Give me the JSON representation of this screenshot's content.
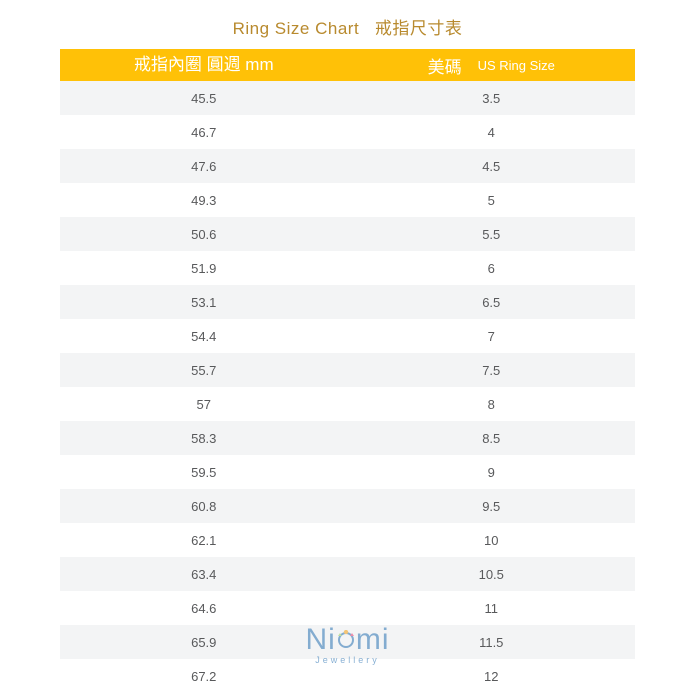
{
  "title": {
    "en": "Ring Size Chart",
    "cn": "戒指尺寸表",
    "color": "#b88a2e"
  },
  "table": {
    "header": {
      "left": "戒指內圈 圓週 mm",
      "right_cn": "美碼",
      "right_en": "US Ring Size",
      "bg_color": "#ffc107",
      "text_color": "#ffffff"
    },
    "row_colors": {
      "odd_bg": "#f3f4f5",
      "even_bg": "#ffffff",
      "text_color": "#58595b"
    },
    "rows": [
      {
        "mm": "45.5",
        "us": "3.5"
      },
      {
        "mm": "46.7",
        "us": "4"
      },
      {
        "mm": "47.6",
        "us": "4.5"
      },
      {
        "mm": "49.3",
        "us": "5"
      },
      {
        "mm": "50.6",
        "us": "5.5"
      },
      {
        "mm": "51.9",
        "us": "6"
      },
      {
        "mm": "53.1",
        "us": "6.5"
      },
      {
        "mm": "54.4",
        "us": "7"
      },
      {
        "mm": "55.7",
        "us": "7.5"
      },
      {
        "mm": "57",
        "us": "8"
      },
      {
        "mm": "58.3",
        "us": "8.5"
      },
      {
        "mm": "59.5",
        "us": "9"
      },
      {
        "mm": "60.8",
        "us": "9.5"
      },
      {
        "mm": "62.1",
        "us": "10"
      },
      {
        "mm": "63.4",
        "us": "10.5"
      },
      {
        "mm": "64.6",
        "us": "11"
      },
      {
        "mm": "65.9",
        "us": "11.5"
      },
      {
        "mm": "67.2",
        "us": "12"
      }
    ]
  },
  "watermark": {
    "main_text": "Niomi",
    "sub_text": "Jewellery",
    "n_color": "#3a7db8",
    "i_color": "#3a7db8",
    "o_color": "#3a7db8",
    "m_color": "#3a7db8",
    "dot_color": "#f4a623",
    "sub_color": "#3a7db8"
  }
}
